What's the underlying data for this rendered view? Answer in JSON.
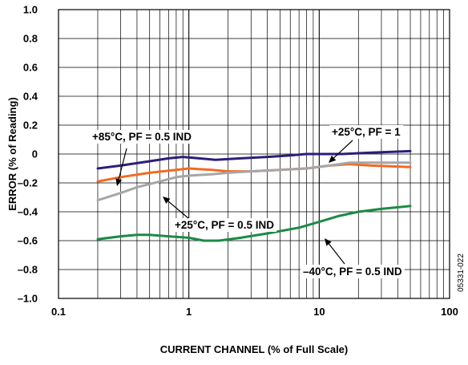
{
  "chart_data": {
    "type": "line",
    "xlabel": "CURRENT CHANNEL (% of Full Scale)",
    "ylabel": "ERROR (% of Reading)",
    "xscale": "log",
    "xlim": [
      0.1,
      100
    ],
    "ylim": [
      -1.0,
      1.0
    ],
    "x_ticks": [
      "0.1",
      "1",
      "10",
      "100"
    ],
    "y_ticks": [
      "1.0",
      "0.8",
      "0.6",
      "0.4",
      "0.2",
      "0",
      "–0.2",
      "–0.4",
      "–0.6",
      "–0.8",
      "–1.0"
    ],
    "grid": true,
    "figure_id": "05331-022",
    "series": [
      {
        "name": "+25°C, PF = 1",
        "color": "#2b1f7a",
        "points": [
          [
            0.2,
            -0.1
          ],
          [
            0.3,
            -0.08
          ],
          [
            0.5,
            -0.05
          ],
          [
            0.7,
            -0.03
          ],
          [
            0.9,
            -0.02
          ],
          [
            1.2,
            -0.03
          ],
          [
            1.6,
            -0.04
          ],
          [
            2.5,
            -0.03
          ],
          [
            4,
            -0.02
          ],
          [
            6,
            -0.01
          ],
          [
            8,
            0.0
          ],
          [
            10,
            0.0
          ],
          [
            15,
            0.0
          ],
          [
            25,
            0.01
          ],
          [
            50,
            0.02
          ]
        ]
      },
      {
        "name": "+85°C, PF = 0.5 IND",
        "color": "#f26a22",
        "points": [
          [
            0.2,
            -0.19
          ],
          [
            0.3,
            -0.16
          ],
          [
            0.5,
            -0.13
          ],
          [
            0.8,
            -0.11
          ],
          [
            1,
            -0.1
          ],
          [
            1.5,
            -0.11
          ],
          [
            2,
            -0.12
          ],
          [
            3,
            -0.12
          ],
          [
            5,
            -0.11
          ],
          [
            8,
            -0.1
          ],
          [
            12,
            -0.08
          ],
          [
            17,
            -0.07
          ],
          [
            25,
            -0.08
          ],
          [
            50,
            -0.09
          ]
        ]
      },
      {
        "name": "+25°C, PF = 0.5 IND",
        "color": "#a6a6a6",
        "points": [
          [
            0.2,
            -0.32
          ],
          [
            0.3,
            -0.27
          ],
          [
            0.4,
            -0.23
          ],
          [
            0.6,
            -0.19
          ],
          [
            0.8,
            -0.16
          ],
          [
            1,
            -0.15
          ],
          [
            1.5,
            -0.14
          ],
          [
            2,
            -0.13
          ],
          [
            3,
            -0.12
          ],
          [
            5,
            -0.11
          ],
          [
            8,
            -0.1
          ],
          [
            12,
            -0.08
          ],
          [
            17,
            -0.06
          ],
          [
            25,
            -0.06
          ],
          [
            50,
            -0.06
          ]
        ]
      },
      {
        "name": "–40°C, PF = 0.5 IND",
        "color": "#1c8a46",
        "points": [
          [
            0.2,
            -0.59
          ],
          [
            0.3,
            -0.57
          ],
          [
            0.4,
            -0.56
          ],
          [
            0.5,
            -0.56
          ],
          [
            0.7,
            -0.57
          ],
          [
            1,
            -0.58
          ],
          [
            1.3,
            -0.6
          ],
          [
            1.7,
            -0.6
          ],
          [
            2.5,
            -0.58
          ],
          [
            4,
            -0.55
          ],
          [
            7,
            -0.51
          ],
          [
            10,
            -0.47
          ],
          [
            14,
            -0.43
          ],
          [
            20,
            -0.4
          ],
          [
            30,
            -0.38
          ],
          [
            50,
            -0.36
          ]
        ]
      }
    ],
    "annotations": [
      {
        "text": "+85°C, PF = 0.5 IND",
        "series": 1
      },
      {
        "text": "+25°C, PF = 1",
        "series": 0
      },
      {
        "text": "+25°C, PF = 0.5 IND",
        "series": 2
      },
      {
        "text": "–40°C, PF = 0.5 IND",
        "series": 3
      }
    ]
  }
}
